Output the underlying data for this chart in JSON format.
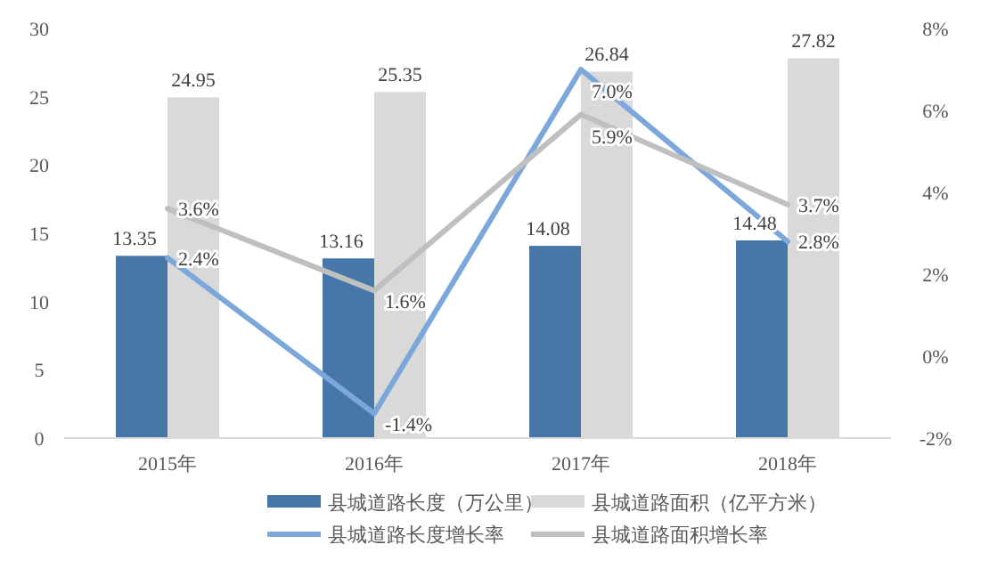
{
  "chart_data": {
    "type": "bar",
    "categories": [
      "2015年",
      "2016年",
      "2017年",
      "2018年"
    ],
    "series": [
      {
        "name": "县城道路长度（万公里）",
        "color": "#4677a8",
        "values": [
          13.35,
          13.16,
          14.08,
          14.48
        ],
        "value_labels": [
          "13.35",
          "13.16",
          "14.08",
          "14.48"
        ]
      },
      {
        "name": "县城道路面积（亿平方米）",
        "color": "#d9d9d9",
        "values": [
          24.95,
          25.35,
          26.84,
          27.82
        ],
        "value_labels": [
          "24.95",
          "25.35",
          "26.84",
          "27.82"
        ]
      },
      {
        "name": "县城道路长度增长率",
        "type": "line",
        "axis": "y2",
        "color": "#7ba7db",
        "values": [
          2.4,
          -1.4,
          7.0,
          2.8
        ],
        "value_labels": [
          "2.4%",
          "-1.4%",
          "7.0%",
          "2.8%"
        ]
      },
      {
        "name": "县城道路面积增长率",
        "type": "line",
        "axis": "y2",
        "color": "#bfbfbf",
        "values": [
          3.6,
          1.6,
          5.9,
          3.7
        ],
        "value_labels": [
          "3.6%",
          "1.6%",
          "5.9%",
          "3.7%"
        ]
      }
    ],
    "ylim": [
      0,
      30
    ],
    "yticks": [
      0,
      5,
      10,
      15,
      20,
      25,
      30
    ],
    "y2lim": [
      -2,
      8
    ],
    "y2ticks": [
      {
        "value": -2,
        "label": "-2%"
      },
      {
        "value": 0,
        "label": "0%"
      },
      {
        "value": 2,
        "label": "2%"
      },
      {
        "value": 4,
        "label": "4%"
      },
      {
        "value": 6,
        "label": "6%"
      },
      {
        "value": 8,
        "label": "8%"
      }
    ],
    "legend": "bottom",
    "grid": false
  }
}
